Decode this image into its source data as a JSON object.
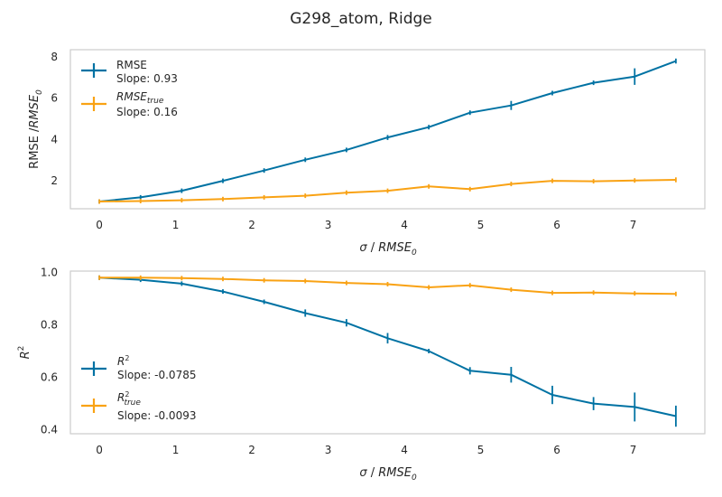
{
  "figure": {
    "title": "G298_atom, Ridge"
  },
  "colors": {
    "series1": "#0072a3",
    "series2": "#f9a214",
    "frame": "#cccccc",
    "text": "#262626"
  },
  "chart_data": [
    {
      "type": "line",
      "xlabel": "σ / RMSE₀",
      "ylabel": "RMSE /RMSE₀",
      "xlim": [
        -0.38,
        7.94
      ],
      "ylim": [
        0.65,
        8.35
      ],
      "xticks": [
        0,
        1,
        2,
        3,
        4,
        5,
        6,
        7
      ],
      "yticks": [
        2,
        4,
        6,
        8
      ],
      "grid": false,
      "legend_position": "upper-left",
      "x": [
        0,
        0.54,
        1.08,
        1.62,
        2.16,
        2.7,
        3.24,
        3.78,
        4.32,
        4.86,
        5.4,
        5.94,
        6.48,
        7.02,
        7.56
      ],
      "series": [
        {
          "name": "RMSE",
          "legend_sub": "Slope: 0.93",
          "color": "#0072a3",
          "values": [
            1.0,
            1.2,
            1.52,
            2.0,
            2.5,
            3.02,
            3.5,
            4.1,
            4.6,
            5.3,
            5.65,
            6.25,
            6.75,
            7.05,
            7.8
          ],
          "errors": [
            0.05,
            0.04,
            0.06,
            0.05,
            0.06,
            0.1,
            0.1,
            0.12,
            0.1,
            0.08,
            0.22,
            0.1,
            0.06,
            0.4,
            0.12
          ]
        },
        {
          "name": "RMSE_true",
          "legend_sub": "Slope: 0.16",
          "color": "#f9a214",
          "values": [
            1.0,
            1.02,
            1.06,
            1.12,
            1.2,
            1.28,
            1.43,
            1.52,
            1.73,
            1.6,
            1.85,
            2.0,
            1.98,
            2.02,
            2.05
          ],
          "errors": [
            0.03,
            0.02,
            0.03,
            0.03,
            0.04,
            0.04,
            0.05,
            0.08,
            0.05,
            0.04,
            0.04,
            0.06,
            0.05,
            0.06,
            0.12
          ]
        }
      ]
    },
    {
      "type": "line",
      "xlabel": "σ / RMSE₀",
      "ylabel": "R²",
      "xlim": [
        -0.38,
        7.94
      ],
      "ylim": [
        0.385,
        1.005
      ],
      "xticks": [
        0,
        1,
        2,
        3,
        4,
        5,
        6,
        7
      ],
      "yticks": [
        0.4,
        0.6,
        0.8,
        1.0
      ],
      "ytick_labels": [
        "0.4",
        "0.6",
        "0.8",
        "1.0"
      ],
      "grid": false,
      "legend_position": "lower-left",
      "x": [
        0,
        0.54,
        1.08,
        1.62,
        2.16,
        2.7,
        3.24,
        3.78,
        4.32,
        4.86,
        5.4,
        5.94,
        6.48,
        7.02,
        7.56
      ],
      "series": [
        {
          "name": "R²",
          "legend_sub": "Slope: -0.0785",
          "color": "#0072a3",
          "values": [
            0.98,
            0.972,
            0.957,
            0.927,
            0.888,
            0.845,
            0.808,
            0.749,
            0.7,
            0.625,
            0.61,
            0.533,
            0.5,
            0.487,
            0.452
          ],
          "errors": [
            0.003,
            0.004,
            0.004,
            0.006,
            0.008,
            0.014,
            0.014,
            0.02,
            0.008,
            0.014,
            0.03,
            0.035,
            0.025,
            0.055,
            0.04
          ]
        },
        {
          "name": "R²_true",
          "legend_sub": "Slope: -0.0093",
          "color": "#f9a214",
          "values": [
            0.98,
            0.98,
            0.978,
            0.975,
            0.97,
            0.967,
            0.96,
            0.955,
            0.943,
            0.951,
            0.934,
            0.922,
            0.923,
            0.92,
            0.918
          ],
          "errors": [
            0.002,
            0.002,
            0.002,
            0.002,
            0.003,
            0.003,
            0.003,
            0.006,
            0.004,
            0.005,
            0.004,
            0.005,
            0.005,
            0.006,
            0.008
          ]
        }
      ]
    }
  ]
}
